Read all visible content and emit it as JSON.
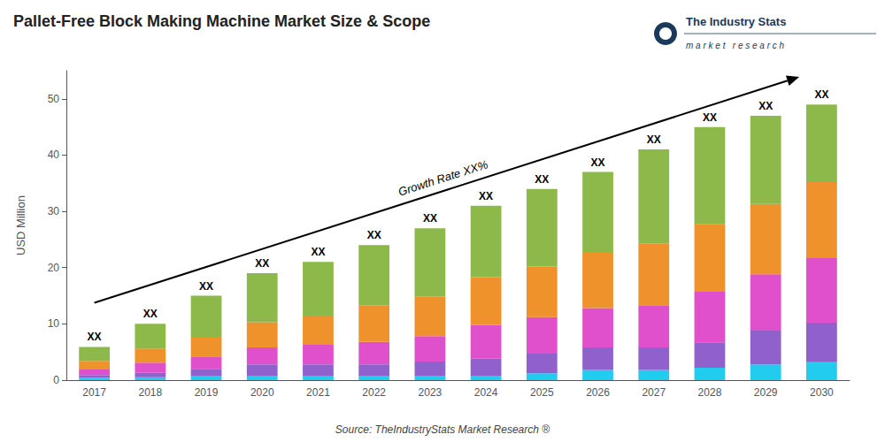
{
  "chart_data": {
    "type": "bar",
    "title": "Pallet-Free Block Making Machine Market Size & Scope",
    "ylabel": "USD Million",
    "categories": [
      "2017",
      "2018",
      "2019",
      "2020",
      "2021",
      "2022",
      "2023",
      "2024",
      "2025",
      "2026",
      "2027",
      "2028",
      "2029",
      "2030"
    ],
    "series": [
      {
        "color": "#22ccee",
        "values": [
          0.4,
          0.5,
          0.8,
          0.8,
          0.8,
          0.8,
          0.8,
          0.8,
          1.2,
          1.8,
          1.8,
          2.2,
          2.8,
          3.2
        ]
      },
      {
        "color": "#9060cc",
        "values": [
          0.5,
          0.8,
          1.2,
          2.0,
          2.0,
          2.0,
          2.5,
          3.0,
          3.5,
          4.0,
          4.0,
          4.5,
          6.0,
          7.0
        ]
      },
      {
        "color": "#e050cc",
        "values": [
          1.0,
          1.8,
          2.2,
          3.0,
          3.5,
          4.0,
          4.5,
          6.0,
          6.5,
          7.0,
          7.5,
          9.0,
          10.0,
          11.5
        ]
      },
      {
        "color": "#f0922b",
        "values": [
          1.5,
          2.5,
          3.5,
          4.5,
          5.0,
          6.5,
          7.0,
          8.5,
          9.0,
          10.0,
          11.0,
          12.0,
          12.5,
          13.5
        ]
      },
      {
        "color": "#8db84a",
        "values": [
          2.5,
          4.4,
          7.3,
          8.7,
          9.7,
          10.7,
          12.2,
          12.7,
          13.8,
          14.2,
          16.7,
          17.3,
          15.7,
          13.8
        ]
      }
    ],
    "stacked": true,
    "ylim": [
      0,
      55
    ],
    "yticks": [
      0,
      10,
      20,
      30,
      40,
      50
    ],
    "grid": false,
    "annotations": [
      {
        "text": "XX",
        "kind": "total_label"
      },
      {
        "text": "Growth Rate XX%",
        "kind": "arrow"
      },
      {
        "text": "Source: TheIndustryStats Market Research ®",
        "kind": "source"
      },
      {
        "text": "The Industry Stats",
        "kind": "logo_title"
      },
      {
        "text": "m a r k e t   r e s e a r c h",
        "kind": "logo_subtitle"
      }
    ]
  }
}
